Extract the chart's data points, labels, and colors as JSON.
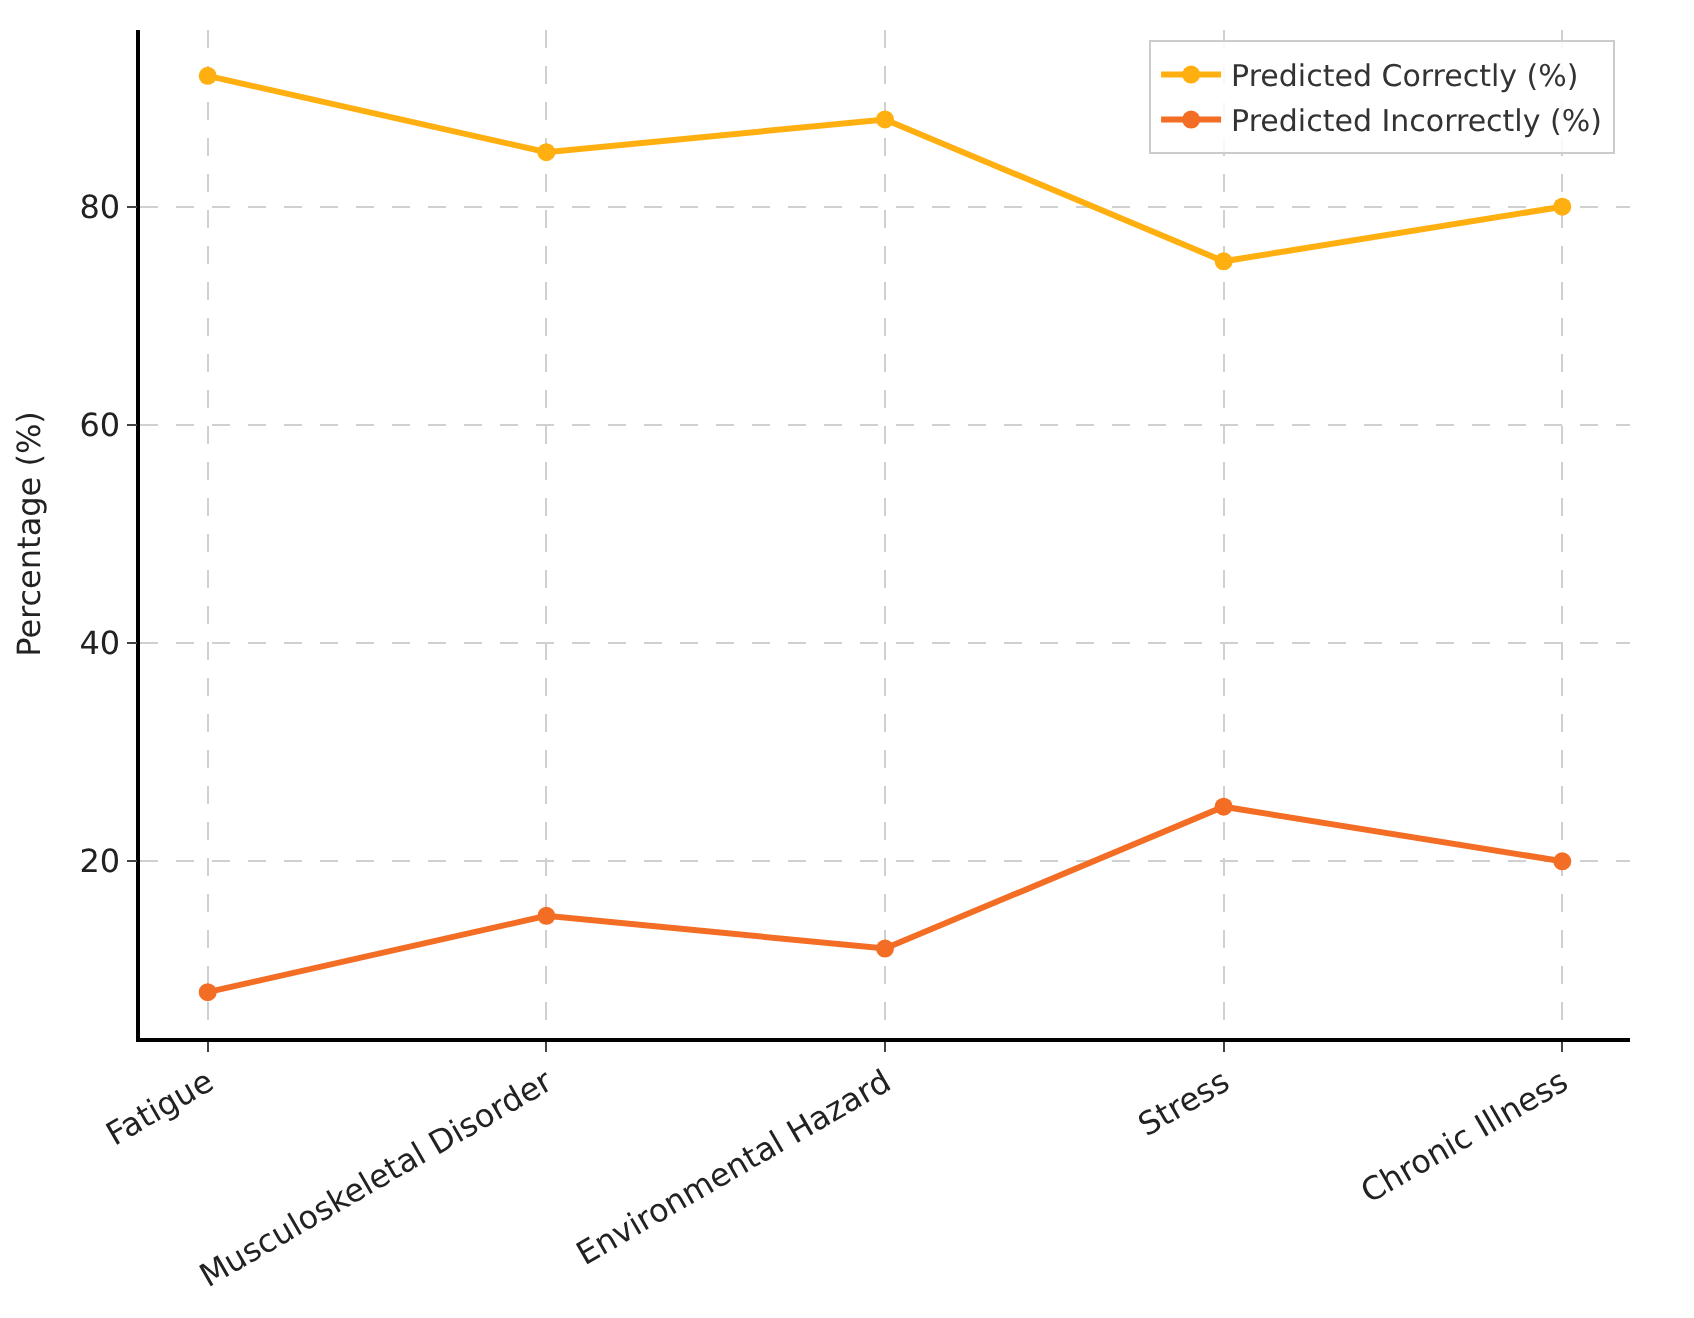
{
  "chart_data": {
    "type": "line",
    "ylabel": "Percentage (%)",
    "categories": [
      "Fatigue",
      "Musculoskeletal Disorder",
      "Environmental Hazard",
      "Stress",
      "Chronic Illness"
    ],
    "series": [
      {
        "name": "Predicted Correctly (%)",
        "color": "#ffaf0f",
        "values": [
          92,
          85,
          88,
          75,
          80
        ]
      },
      {
        "name": "Predicted Incorrectly (%)",
        "color": "#f46d25",
        "values": [
          8,
          15,
          12,
          25,
          20
        ]
      }
    ],
    "ylim": [
      3.8,
      96.2
    ],
    "yticks": [
      20,
      40,
      60,
      80
    ],
    "grid": true,
    "legend": "top right",
    "marker": "circle",
    "line_style": "solid"
  }
}
